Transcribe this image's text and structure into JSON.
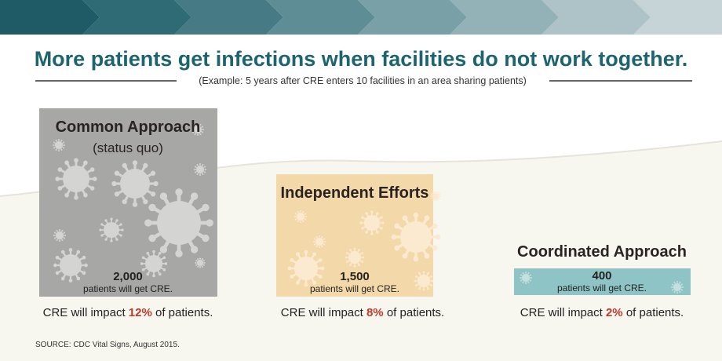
{
  "header": {
    "title": "More patients get infections when facilities do not work together.",
    "subtitle": "(Example: 5 years after CRE enters 10 facilities in an area sharing patients)"
  },
  "panels": [
    {
      "title": "Common Approach",
      "subtitle": "(status quo)",
      "count": "2,000",
      "count_text": "patients will get CRE.",
      "impact_prefix": "CRE will impact",
      "impact": "12%",
      "impact_suffix": "of patients."
    },
    {
      "title": "Independent Efforts",
      "count": "1,500",
      "count_text": "patients will get CRE.",
      "impact_prefix": "CRE will impact",
      "impact": "8%",
      "impact_suffix": "of patients."
    },
    {
      "title": "Coordinated Approach",
      "count": "400",
      "count_text": "patients will get CRE.",
      "impact_prefix": "CRE will impact",
      "impact": "2%",
      "impact_suffix": "of patients."
    }
  ],
  "source": "SOURCE: CDC Vital Signs, August 2015."
}
